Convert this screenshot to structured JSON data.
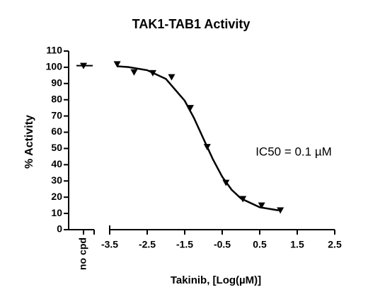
{
  "chart_data": {
    "type": "scatter",
    "title": "TAK1-TAB1 Activity",
    "ylabel": "% Activity",
    "xlabel": "Takinib, [Log(µM)]",
    "annotation": "IC50 = 0.1 µM",
    "color": "#000000",
    "control": {
      "label": "no cpd",
      "value": 101
    },
    "x": [
      -3.3,
      -2.85,
      -2.35,
      -1.85,
      -1.35,
      -0.9,
      -0.4,
      0.05,
      0.55,
      1.05
    ],
    "values": [
      102,
      97,
      96.5,
      94,
      75,
      51,
      29,
      19,
      15,
      12
    ],
    "fit": {
      "x": [
        -3.3,
        -3,
        -2.5,
        -2,
        -1.5,
        -1.25,
        -1,
        -0.75,
        -0.5,
        -0.25,
        0,
        0.5,
        1
      ],
      "values": [
        100.6,
        100.1,
        98.2,
        92.8,
        79.4,
        68.6,
        56,
        43.4,
        32.6,
        24.6,
        19.2,
        13.8,
        11.9
      ]
    },
    "xlim": [
      -3.5,
      2.5
    ],
    "xticks": [
      -3.5,
      -2.5,
      -1.5,
      -0.5,
      0.5,
      1.5,
      2.5
    ],
    "ylim": [
      0,
      110
    ],
    "yticks": [
      0,
      10,
      20,
      30,
      40,
      50,
      60,
      70,
      80,
      90,
      100,
      110
    ]
  }
}
